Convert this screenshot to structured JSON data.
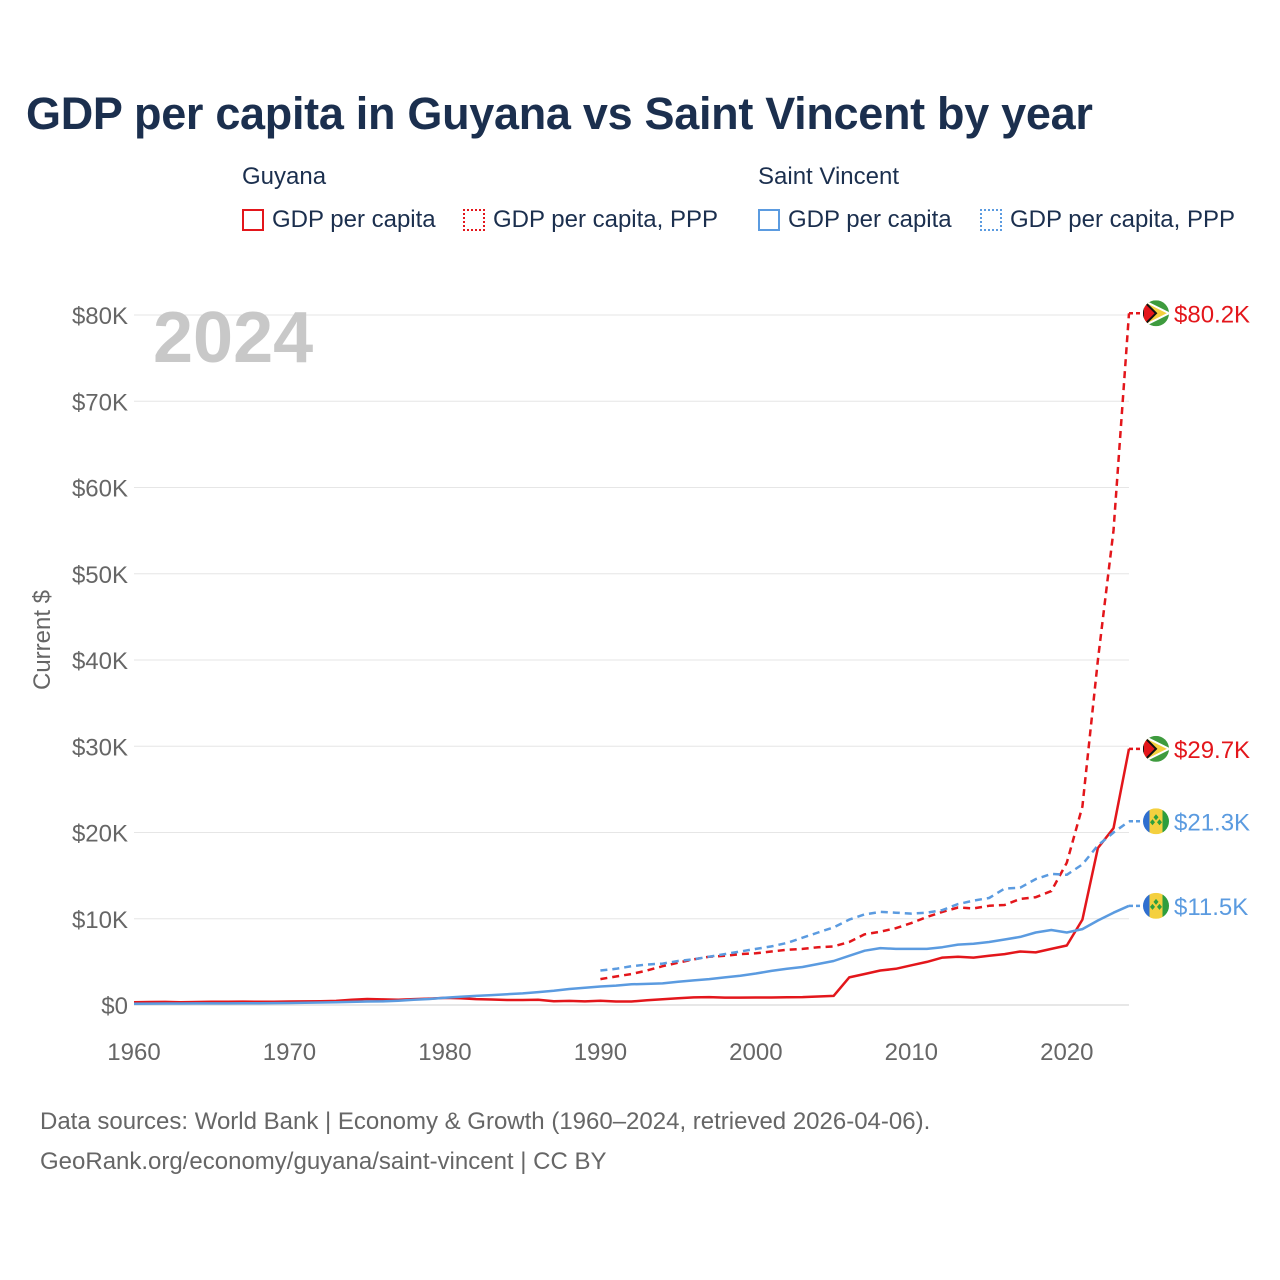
{
  "page": {
    "title": "GDP per capita in Guyana vs Saint Vincent by year",
    "footer_line1": "Data sources: World Bank | Economy & Growth (1960–2024, retrieved 2026-04-06).",
    "footer_line2": "GeoRank.org/economy/guyana/saint-vincent | CC BY"
  },
  "legend": {
    "groups": [
      {
        "title": "Guyana",
        "items": [
          {
            "label": "GDP per capita",
            "color": "#e3161b",
            "style": "solid"
          },
          {
            "label": "GDP per capita, PPP",
            "color": "#e3161b",
            "style": "dotted"
          }
        ]
      },
      {
        "title": "Saint Vincent",
        "items": [
          {
            "label": "GDP per capita",
            "color": "#5b9be0",
            "style": "solid"
          },
          {
            "label": "GDP per capita, PPP",
            "color": "#5b9be0",
            "style": "dotted"
          }
        ]
      }
    ]
  },
  "chart_data": {
    "type": "line",
    "title": "GDP per capita in Guyana vs Saint Vincent by year",
    "year_watermark": "2024",
    "ylabel": "Current $",
    "xlabel": "",
    "xlim": [
      1960,
      2024
    ],
    "ylim": [
      0,
      80000
    ],
    "x_ticks": [
      1960,
      1970,
      1980,
      1990,
      2000,
      2010,
      2020
    ],
    "y_ticks": [
      {
        "value": 0,
        "label": "$0"
      },
      {
        "value": 10000,
        "label": "$10K"
      },
      {
        "value": 20000,
        "label": "$20K"
      },
      {
        "value": 30000,
        "label": "$30K"
      },
      {
        "value": 40000,
        "label": "$40K"
      },
      {
        "value": 50000,
        "label": "$50K"
      },
      {
        "value": 60000,
        "label": "$60K"
      },
      {
        "value": 70000,
        "label": "$70K"
      },
      {
        "value": 80000,
        "label": "$80K"
      }
    ],
    "grid": true,
    "series": [
      {
        "name": "Guyana GDP per capita, PPP",
        "country": "Guyana",
        "color": "#e3161b",
        "dash": "dashed",
        "flag": "guyana",
        "end_label": "$80.2K",
        "points": [
          [
            1990,
            3000
          ],
          [
            1991,
            3300
          ],
          [
            1992,
            3600
          ],
          [
            1993,
            4000
          ],
          [
            1994,
            4500
          ],
          [
            1995,
            4900
          ],
          [
            1996,
            5300
          ],
          [
            1997,
            5600
          ],
          [
            1998,
            5700
          ],
          [
            1999,
            5900
          ],
          [
            2000,
            6000
          ],
          [
            2001,
            6200
          ],
          [
            2002,
            6400
          ],
          [
            2003,
            6500
          ],
          [
            2004,
            6700
          ],
          [
            2005,
            6800
          ],
          [
            2006,
            7300
          ],
          [
            2007,
            8200
          ],
          [
            2008,
            8500
          ],
          [
            2009,
            8900
          ],
          [
            2010,
            9500
          ],
          [
            2011,
            10200
          ],
          [
            2012,
            10800
          ],
          [
            2013,
            11300
          ],
          [
            2014,
            11200
          ],
          [
            2015,
            11500
          ],
          [
            2016,
            11600
          ],
          [
            2017,
            12300
          ],
          [
            2018,
            12500
          ],
          [
            2019,
            13200
          ],
          [
            2020,
            16500
          ],
          [
            2021,
            23000
          ],
          [
            2022,
            40000
          ],
          [
            2023,
            55000
          ],
          [
            2024,
            80200
          ]
        ]
      },
      {
        "name": "Guyana GDP per capita",
        "country": "Guyana",
        "color": "#e3161b",
        "dash": "solid",
        "flag": "guyana",
        "end_label": "$29.7K",
        "points": [
          [
            1960,
            320
          ],
          [
            1961,
            350
          ],
          [
            1962,
            360
          ],
          [
            1963,
            330
          ],
          [
            1964,
            350
          ],
          [
            1965,
            370
          ],
          [
            1966,
            380
          ],
          [
            1967,
            390
          ],
          [
            1968,
            370
          ],
          [
            1969,
            380
          ],
          [
            1970,
            400
          ],
          [
            1971,
            420
          ],
          [
            1972,
            440
          ],
          [
            1973,
            470
          ],
          [
            1974,
            600
          ],
          [
            1975,
            700
          ],
          [
            1976,
            650
          ],
          [
            1977,
            620
          ],
          [
            1978,
            680
          ],
          [
            1979,
            740
          ],
          [
            1980,
            820
          ],
          [
            1981,
            780
          ],
          [
            1982,
            680
          ],
          [
            1983,
            640
          ],
          [
            1984,
            580
          ],
          [
            1985,
            580
          ],
          [
            1986,
            620
          ],
          [
            1987,
            430
          ],
          [
            1988,
            470
          ],
          [
            1989,
            420
          ],
          [
            1990,
            500
          ],
          [
            1991,
            400
          ],
          [
            1992,
            410
          ],
          [
            1993,
            550
          ],
          [
            1994,
            670
          ],
          [
            1995,
            780
          ],
          [
            1996,
            880
          ],
          [
            1997,
            920
          ],
          [
            1998,
            860
          ],
          [
            1999,
            860
          ],
          [
            2000,
            870
          ],
          [
            2001,
            870
          ],
          [
            2002,
            890
          ],
          [
            2003,
            920
          ],
          [
            2004,
            980
          ],
          [
            2005,
            1050
          ],
          [
            2006,
            3200
          ],
          [
            2007,
            3600
          ],
          [
            2008,
            4000
          ],
          [
            2009,
            4200
          ],
          [
            2010,
            4600
          ],
          [
            2011,
            5000
          ],
          [
            2012,
            5500
          ],
          [
            2013,
            5600
          ],
          [
            2014,
            5500
          ],
          [
            2015,
            5700
          ],
          [
            2016,
            5900
          ],
          [
            2017,
            6200
          ],
          [
            2018,
            6100
          ],
          [
            2019,
            6500
          ],
          [
            2020,
            6900
          ],
          [
            2021,
            9900
          ],
          [
            2022,
            18200
          ],
          [
            2023,
            20500
          ],
          [
            2024,
            29700
          ]
        ]
      },
      {
        "name": "Saint Vincent GDP per capita, PPP",
        "country": "Saint Vincent",
        "color": "#5b9be0",
        "dash": "dashed",
        "flag": "saint-vincent",
        "end_label": "$21.3K",
        "points": [
          [
            1990,
            4000
          ],
          [
            1991,
            4200
          ],
          [
            1992,
            4500
          ],
          [
            1993,
            4700
          ],
          [
            1994,
            4800
          ],
          [
            1995,
            5100
          ],
          [
            1996,
            5300
          ],
          [
            1997,
            5600
          ],
          [
            1998,
            5900
          ],
          [
            1999,
            6200
          ],
          [
            2000,
            6500
          ],
          [
            2001,
            6800
          ],
          [
            2002,
            7200
          ],
          [
            2003,
            7800
          ],
          [
            2004,
            8400
          ],
          [
            2005,
            9000
          ],
          [
            2006,
            9900
          ],
          [
            2007,
            10500
          ],
          [
            2008,
            10800
          ],
          [
            2009,
            10700
          ],
          [
            2010,
            10600
          ],
          [
            2011,
            10700
          ],
          [
            2012,
            11000
          ],
          [
            2013,
            11700
          ],
          [
            2014,
            12100
          ],
          [
            2015,
            12400
          ],
          [
            2016,
            13500
          ],
          [
            2017,
            13600
          ],
          [
            2018,
            14600
          ],
          [
            2019,
            15200
          ],
          [
            2020,
            15100
          ],
          [
            2021,
            16300
          ],
          [
            2022,
            18500
          ],
          [
            2023,
            20000
          ],
          [
            2024,
            21300
          ]
        ]
      },
      {
        "name": "Saint Vincent GDP per capita",
        "country": "Saint Vincent",
        "color": "#5b9be0",
        "dash": "solid",
        "flag": "saint-vincent",
        "end_label": "$11.5K",
        "points": [
          [
            1960,
            150
          ],
          [
            1961,
            160
          ],
          [
            1962,
            170
          ],
          [
            1963,
            170
          ],
          [
            1964,
            180
          ],
          [
            1965,
            190
          ],
          [
            1966,
            190
          ],
          [
            1967,
            200
          ],
          [
            1968,
            210
          ],
          [
            1969,
            220
          ],
          [
            1970,
            230
          ],
          [
            1971,
            260
          ],
          [
            1972,
            290
          ],
          [
            1973,
            320
          ],
          [
            1974,
            360
          ],
          [
            1975,
            400
          ],
          [
            1976,
            420
          ],
          [
            1977,
            500
          ],
          [
            1978,
            600
          ],
          [
            1979,
            700
          ],
          [
            1980,
            850
          ],
          [
            1981,
            950
          ],
          [
            1982,
            1050
          ],
          [
            1983,
            1150
          ],
          [
            1984,
            1250
          ],
          [
            1985,
            1350
          ],
          [
            1986,
            1500
          ],
          [
            1987,
            1650
          ],
          [
            1988,
            1850
          ],
          [
            1989,
            2000
          ],
          [
            1990,
            2150
          ],
          [
            1991,
            2250
          ],
          [
            1992,
            2400
          ],
          [
            1993,
            2450
          ],
          [
            1994,
            2500
          ],
          [
            1995,
            2700
          ],
          [
            1996,
            2850
          ],
          [
            1997,
            3000
          ],
          [
            1998,
            3200
          ],
          [
            1999,
            3400
          ],
          [
            2000,
            3650
          ],
          [
            2001,
            3950
          ],
          [
            2002,
            4200
          ],
          [
            2003,
            4400
          ],
          [
            2004,
            4750
          ],
          [
            2005,
            5100
          ],
          [
            2006,
            5700
          ],
          [
            2007,
            6300
          ],
          [
            2008,
            6600
          ],
          [
            2009,
            6500
          ],
          [
            2010,
            6500
          ],
          [
            2011,
            6500
          ],
          [
            2012,
            6700
          ],
          [
            2013,
            7000
          ],
          [
            2014,
            7100
          ],
          [
            2015,
            7300
          ],
          [
            2016,
            7600
          ],
          [
            2017,
            7900
          ],
          [
            2018,
            8400
          ],
          [
            2019,
            8700
          ],
          [
            2020,
            8400
          ],
          [
            2021,
            8800
          ],
          [
            2022,
            9800
          ],
          [
            2023,
            10700
          ],
          [
            2024,
            11500
          ]
        ]
      }
    ]
  }
}
